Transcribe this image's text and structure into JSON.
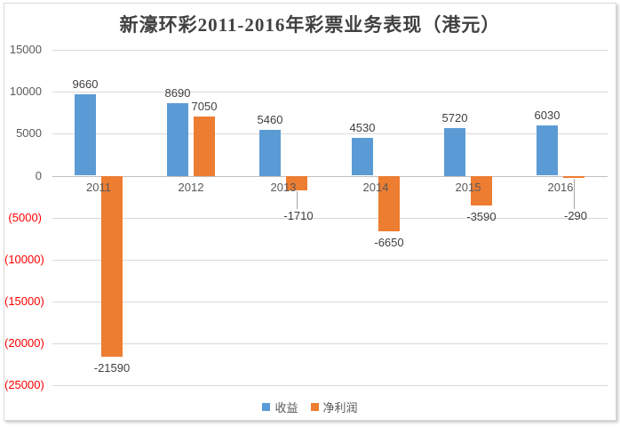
{
  "chart_data": {
    "type": "bar",
    "title": "新濠环彩2011-2016年彩票业务表现（港元）",
    "categories": [
      "2011",
      "2012",
      "2013",
      "2014",
      "2015",
      "2016"
    ],
    "series": [
      {
        "name": "收益",
        "color": "#5B9BD5",
        "values": [
          9660,
          8690,
          5460,
          4530,
          5720,
          6030
        ],
        "labels": [
          "9660",
          "8690",
          "5460",
          "4530",
          "5720",
          "6030"
        ],
        "leader": [
          false,
          false,
          false,
          false,
          false,
          false
        ]
      },
      {
        "name": "净利润",
        "color": "#ED7D31",
        "values": [
          -21590,
          7050,
          -1710,
          -6650,
          -3590,
          -290
        ],
        "labels": [
          "-21590",
          "7050",
          "-1710",
          "-6650",
          "-3590",
          "-290"
        ],
        "leader": [
          false,
          false,
          true,
          false,
          false,
          true
        ]
      }
    ],
    "ylim": [
      -25000,
      15000
    ],
    "y_axis": {
      "tick_values": [
        15000,
        10000,
        5000,
        0,
        -5000,
        -10000,
        -15000,
        -20000,
        -25000
      ],
      "tick_labels": [
        "15000",
        "10000",
        "5000",
        "0",
        "(5000)",
        "(10000)",
        "(15000)",
        "(20000)",
        "(25000)"
      ]
    },
    "grid": true,
    "legend_position": "bottom",
    "colors": {
      "gridline": "#d9d9d9",
      "zero_axis": "#bfbfbf",
      "axis_label": "#595959",
      "negative_axis_label": "#ff0000",
      "data_label": "#404040",
      "leader_line": "#a6a6a6"
    }
  }
}
